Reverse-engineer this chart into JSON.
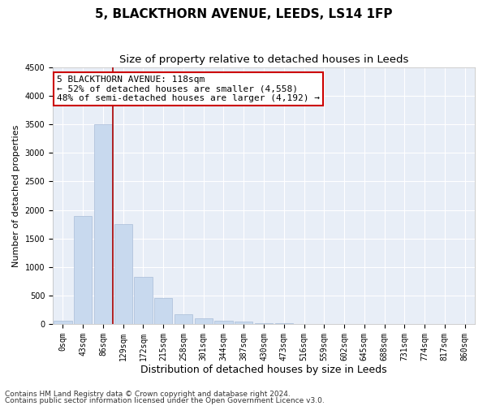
{
  "title1": "5, BLACKTHORN AVENUE, LEEDS, LS14 1FP",
  "title2": "Size of property relative to detached houses in Leeds",
  "xlabel": "Distribution of detached houses by size in Leeds",
  "ylabel": "Number of detached properties",
  "bar_labels": [
    "0sqm",
    "43sqm",
    "86sqm",
    "129sqm",
    "172sqm",
    "215sqm",
    "258sqm",
    "301sqm",
    "344sqm",
    "387sqm",
    "430sqm",
    "473sqm",
    "516sqm",
    "559sqm",
    "602sqm",
    "645sqm",
    "688sqm",
    "731sqm",
    "774sqm",
    "817sqm",
    "860sqm"
  ],
  "bar_values": [
    50,
    1900,
    3500,
    1750,
    820,
    450,
    170,
    100,
    60,
    40,
    20,
    10,
    0,
    0,
    0,
    0,
    0,
    0,
    0,
    0,
    0
  ],
  "bar_color": "#c8d9ee",
  "bar_edge_color": "#aabdd8",
  "property_line_x": 2.5,
  "annotation_text": "5 BLACKTHORN AVENUE: 118sqm\n← 52% of detached houses are smaller (4,558)\n48% of semi-detached houses are larger (4,192) →",
  "annotation_box_facecolor": "#ffffff",
  "annotation_box_edgecolor": "#cc0000",
  "red_line_color": "#aa0000",
  "ylim": [
    0,
    4500
  ],
  "yticks": [
    0,
    500,
    1000,
    1500,
    2000,
    2500,
    3000,
    3500,
    4000,
    4500
  ],
  "plot_bg_color": "#e8eef7",
  "grid_color": "#ffffff",
  "footer1": "Contains HM Land Registry data © Crown copyright and database right 2024.",
  "footer2": "Contains public sector information licensed under the Open Government Licence v3.0.",
  "title1_fontsize": 11,
  "title2_fontsize": 9.5,
  "xlabel_fontsize": 9,
  "ylabel_fontsize": 8,
  "tick_fontsize": 7,
  "annotation_fontsize": 8,
  "footer_fontsize": 6.5
}
